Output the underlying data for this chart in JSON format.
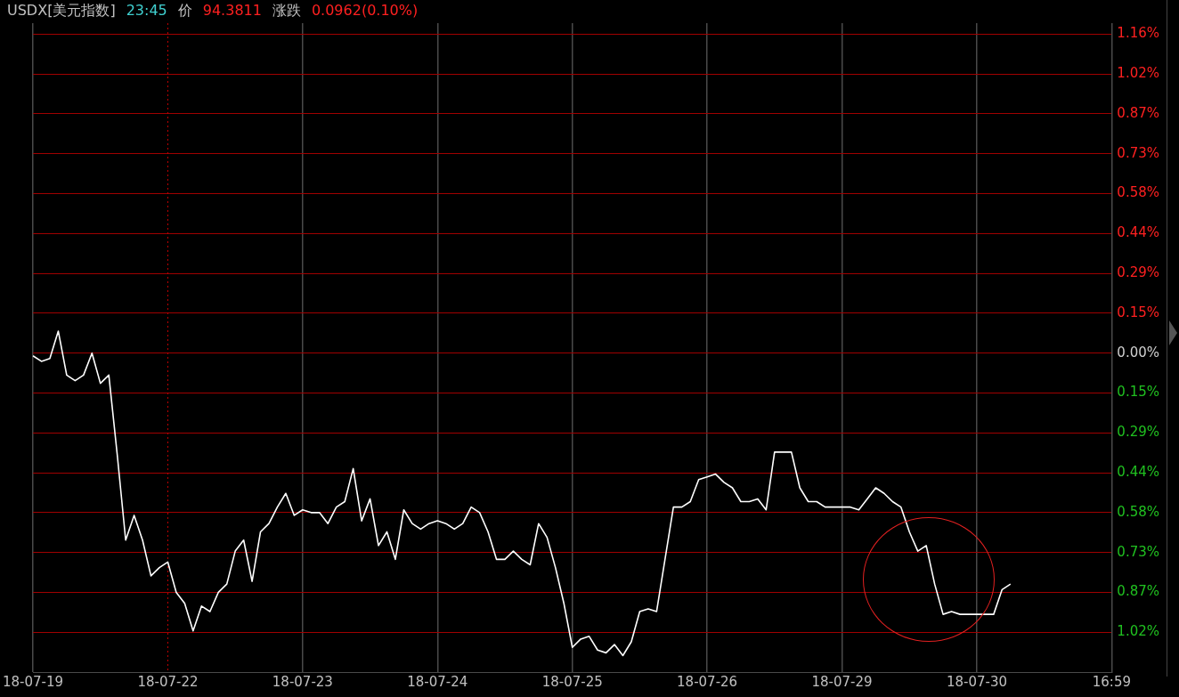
{
  "chart_data": {
    "type": "line",
    "title": "USDX[美元指数]",
    "subtitle": "23:45",
    "annotations": [
      "价",
      "94.3811",
      "涨跌",
      "0.0962(0.10%)"
    ],
    "categories": [
      "18-07-19",
      null,
      null,
      null,
      null,
      null,
      null,
      null,
      null,
      null,
      null,
      null,
      null,
      null,
      null,
      null,
      "18-07-22",
      null,
      null,
      null,
      null,
      null,
      null,
      null,
      null,
      null,
      null,
      null,
      null,
      null,
      null,
      null,
      "18-07-23",
      null,
      null,
      null,
      null,
      null,
      null,
      null,
      null,
      null,
      null,
      null,
      null,
      null,
      null,
      null,
      "18-07-24",
      null,
      null,
      null,
      null,
      null,
      null,
      null,
      null,
      null,
      null,
      null,
      null,
      null,
      null,
      null,
      "18-07-25",
      null,
      null,
      null,
      null,
      null,
      null,
      null,
      null,
      null,
      null,
      null,
      null,
      null,
      null,
      null,
      "18-07-26",
      null,
      null,
      null,
      null,
      null,
      null,
      null,
      null,
      null,
      null,
      null,
      null,
      null,
      null,
      null,
      "18-07-29",
      null,
      null,
      null,
      null,
      null,
      null,
      null,
      null,
      null,
      null,
      null,
      null,
      null,
      null,
      null,
      "18-07-30",
      null,
      null,
      null,
      null,
      null,
      null,
      null,
      null,
      null,
      null,
      null,
      null,
      null,
      null,
      null,
      "16:59"
    ],
    "series": [
      {
        "color": "#ffffff",
        "values": [
          -0.01,
          -0.03,
          -0.02,
          0.08,
          -0.08,
          -0.1,
          -0.08,
          0.0,
          -0.11,
          -0.08,
          -0.37,
          -0.68,
          -0.59,
          -0.68,
          -0.81,
          -0.78,
          -0.76,
          -0.87,
          -0.91,
          -1.01,
          -0.92,
          -0.94,
          -0.87,
          -0.84,
          -0.72,
          -0.68,
          -0.83,
          -0.65,
          -0.62,
          -0.56,
          -0.51,
          -0.59,
          -0.57,
          -0.58,
          -0.58,
          -0.62,
          -0.56,
          -0.54,
          -0.42,
          -0.61,
          -0.53,
          -0.7,
          -0.65,
          -0.75,
          -0.57,
          -0.62,
          -0.64,
          -0.62,
          -0.61,
          -0.62,
          -0.64,
          -0.62,
          -0.56,
          -0.58,
          -0.65,
          -0.75,
          -0.75,
          -0.72,
          -0.75,
          -0.77,
          -0.62,
          -0.67,
          -0.78,
          -0.91,
          -1.07,
          -1.04,
          -1.03,
          -1.08,
          -1.09,
          -1.06,
          -1.1,
          -1.05,
          -0.94,
          -0.93,
          -0.94,
          -0.75,
          -0.56,
          -0.56,
          -0.54,
          -0.46,
          -0.45,
          -0.44,
          -0.47,
          -0.49,
          -0.54,
          -0.54,
          -0.53,
          -0.57,
          -0.36,
          -0.36,
          -0.36,
          -0.49,
          -0.54,
          -0.54,
          -0.56,
          -0.56,
          -0.56,
          -0.56,
          -0.57,
          -0.53,
          -0.49,
          -0.51,
          -0.54,
          -0.56,
          -0.65,
          -0.72,
          -0.7,
          -0.84,
          -0.95,
          -0.94,
          -0.95,
          -0.95,
          -0.95,
          -0.95,
          -0.95,
          -0.86,
          -0.84,
          null,
          null,
          null,
          null,
          null,
          null,
          null,
          null,
          null,
          null,
          null,
          null
        ]
      }
    ],
    "ylim": [
      -1.16,
      1.2
    ],
    "yticks": [
      {
        "value": 1.16,
        "label": "1.16%"
      },
      {
        "value": 1.015,
        "label": "1.02%"
      },
      {
        "value": 0.87,
        "label": "0.87%"
      },
      {
        "value": 0.725,
        "label": "0.73%"
      },
      {
        "value": 0.58,
        "label": "0.58%"
      },
      {
        "value": 0.435,
        "label": "0.44%"
      },
      {
        "value": 0.29,
        "label": "0.29%"
      },
      {
        "value": 0.145,
        "label": "0.15%"
      },
      {
        "value": 0,
        "label": "0.00%"
      },
      {
        "value": -0.145,
        "label": "0.15%"
      },
      {
        "value": -0.29,
        "label": "0.29%"
      },
      {
        "value": -0.435,
        "label": "0.44%"
      },
      {
        "value": -0.58,
        "label": "0.58%"
      },
      {
        "value": -0.725,
        "label": "0.73%"
      },
      {
        "value": -0.87,
        "label": "0.87%"
      },
      {
        "value": -1.015,
        "label": "1.02%"
      }
    ],
    "ref_lines": [
      {
        "axis": "x",
        "value": "18-07-22",
        "color": "#c00000",
        "line_style": "dotted"
      }
    ],
    "grid": true,
    "marker": "none",
    "line_style": "solid",
    "legend": false
  }
}
